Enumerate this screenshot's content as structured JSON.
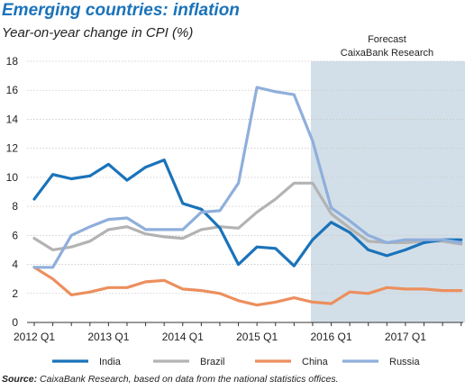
{
  "title": "Emerging countries: inflation",
  "subtitle": "Year-on-year change in CPI (%)",
  "forecast_label_1": "Forecast",
  "forecast_label_2": "CaixaBank Research",
  "source_prefix": "Source:",
  "source_text": "CaixaBank Research, based on data from the national statistics offices.",
  "colors": {
    "India": "#1a73ba",
    "Brazil": "#b3b3b3",
    "China": "#ec8f5e",
    "Russia": "#8fafdc",
    "forecast_band": "#d3dfe8"
  },
  "chart_data": {
    "type": "line",
    "title": "Emerging countries: inflation",
    "ylabel": "Year-on-year change in CPI (%)",
    "xlabel": "",
    "ylim": [
      0,
      18
    ],
    "yticks": [
      0,
      2,
      4,
      6,
      8,
      10,
      12,
      14,
      16,
      18
    ],
    "xtick_labels": [
      "2012 Q1",
      "2013 Q1",
      "2014 Q1",
      "2015 Q1",
      "2016 Q1",
      "2017 Q1"
    ],
    "x": [
      "2012 Q1",
      "2012 Q2",
      "2012 Q3",
      "2012 Q4",
      "2013 Q1",
      "2013 Q2",
      "2013 Q3",
      "2013 Q4",
      "2014 Q1",
      "2014 Q2",
      "2014 Q3",
      "2014 Q4",
      "2015 Q1",
      "2015 Q2",
      "2015 Q3",
      "2015 Q4",
      "2016 Q1",
      "2016 Q2",
      "2016 Q3",
      "2016 Q4",
      "2017 Q1",
      "2017 Q2",
      "2017 Q3",
      "2017 Q4"
    ],
    "forecast_start": "2015 Q4",
    "grid": "horizontal",
    "legend_position": "bottom",
    "series": [
      {
        "name": "India",
        "values": [
          8.5,
          10.2,
          9.9,
          10.1,
          10.9,
          9.8,
          10.7,
          11.2,
          8.2,
          7.8,
          6.5,
          4.0,
          5.2,
          5.1,
          3.9,
          5.7,
          6.9,
          6.2,
          5.0,
          4.6,
          5.0,
          5.5,
          5.7,
          5.7
        ]
      },
      {
        "name": "Brazil",
        "values": [
          5.8,
          5.0,
          5.2,
          5.6,
          6.4,
          6.6,
          6.1,
          5.9,
          5.8,
          6.4,
          6.6,
          6.5,
          7.6,
          8.5,
          9.6,
          9.6,
          7.5,
          6.5,
          5.6,
          5.5,
          5.5,
          5.6,
          5.6,
          5.4
        ]
      },
      {
        "name": "China",
        "values": [
          3.8,
          3.0,
          1.9,
          2.1,
          2.4,
          2.4,
          2.8,
          2.9,
          2.3,
          2.2,
          2.0,
          1.5,
          1.2,
          1.4,
          1.7,
          1.4,
          1.3,
          2.1,
          2.0,
          2.4,
          2.3,
          2.3,
          2.2,
          2.2
        ]
      },
      {
        "name": "Russia",
        "values": [
          3.8,
          3.8,
          6.0,
          6.6,
          7.1,
          7.2,
          6.4,
          6.4,
          6.4,
          7.6,
          7.7,
          9.6,
          16.2,
          15.9,
          15.7,
          12.5,
          7.9,
          7.0,
          6.0,
          5.5,
          5.7,
          5.7,
          5.7,
          5.5
        ]
      }
    ]
  }
}
